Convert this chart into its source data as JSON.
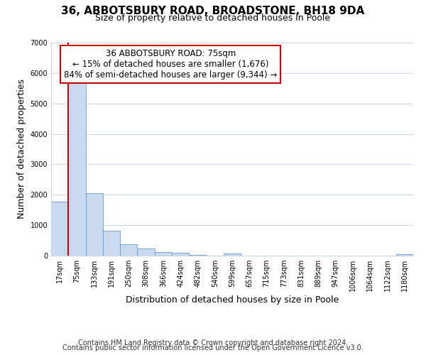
{
  "title": "36, ABBOTSBURY ROAD, BROADSTONE, BH18 9DA",
  "subtitle": "Size of property relative to detached houses in Poole",
  "xlabel": "Distribution of detached houses by size in Poole",
  "ylabel": "Number of detached properties",
  "bar_labels": [
    "17sqm",
    "75sqm",
    "133sqm",
    "191sqm",
    "250sqm",
    "308sqm",
    "366sqm",
    "424sqm",
    "482sqm",
    "540sqm",
    "599sqm",
    "657sqm",
    "715sqm",
    "773sqm",
    "831sqm",
    "889sqm",
    "947sqm",
    "1006sqm",
    "1064sqm",
    "1122sqm",
    "1180sqm"
  ],
  "bar_values": [
    1780,
    5770,
    2050,
    820,
    370,
    230,
    110,
    90,
    15,
    10,
    65,
    10,
    10,
    5,
    5,
    5,
    5,
    5,
    5,
    5,
    50
  ],
  "bar_color": "#c9d9f0",
  "bar_edge_color": "#6699cc",
  "vline_color": "#cc0000",
  "annotation_box_text": "36 ABBOTSBURY ROAD: 75sqm\n← 15% of detached houses are smaller (1,676)\n84% of semi-detached houses are larger (9,344) →",
  "annotation_box_color": "#ffffff",
  "annotation_box_edge_color": "#cc0000",
  "ylim": [
    0,
    7000
  ],
  "yticks": [
    0,
    1000,
    2000,
    3000,
    4000,
    5000,
    6000,
    7000
  ],
  "grid_color": "#c8d4e8",
  "bg_color": "#ffffff",
  "footer_line1": "Contains HM Land Registry data © Crown copyright and database right 2024.",
  "footer_line2": "Contains public sector information licensed under the Open Government Licence v3.0.",
  "title_fontsize": 11,
  "subtitle_fontsize": 9,
  "axis_label_fontsize": 9,
  "tick_fontsize": 7,
  "annotation_fontsize": 8.5,
  "footer_fontsize": 7
}
